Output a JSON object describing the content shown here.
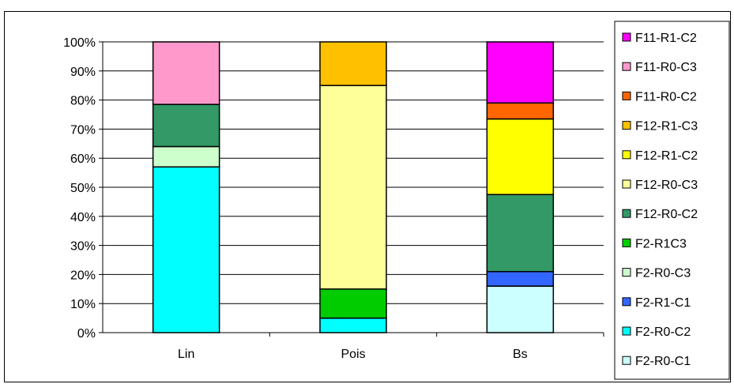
{
  "chart_data": {
    "type": "bar",
    "stacked": true,
    "normalized_percent": true,
    "title": "",
    "xlabel": "",
    "ylabel": "",
    "ylim": [
      0,
      100
    ],
    "y_ticks": [
      "0%",
      "10%",
      "20%",
      "30%",
      "40%",
      "50%",
      "60%",
      "70%",
      "80%",
      "90%",
      "100%"
    ],
    "grid": true,
    "legend_position": "right",
    "categories": [
      "Lin",
      "Pois",
      "Bs"
    ],
    "series": [
      {
        "name": "F2-R0-C1",
        "color": "#CCFFFF",
        "values": [
          0,
          0,
          16
        ]
      },
      {
        "name": "F2-R0-C2",
        "color": "#00FFFF",
        "values": [
          57,
          5,
          0
        ]
      },
      {
        "name": "F2-R1-C1",
        "color": "#3366FF",
        "values": [
          0,
          0,
          5
        ]
      },
      {
        "name": "F2-R0-C3",
        "color": "#CCFFCC",
        "values": [
          7,
          0,
          0
        ]
      },
      {
        "name": "F2-R1C3",
        "color": "#00CC00",
        "values": [
          0,
          10,
          0
        ]
      },
      {
        "name": "F12-R0-C2",
        "color": "#339966",
        "values": [
          14.5,
          0,
          26.5
        ]
      },
      {
        "name": "F12-R0-C3",
        "color": "#FFFF99",
        "values": [
          0,
          70,
          0
        ]
      },
      {
        "name": "F12-R1-C2",
        "color": "#FFFF00",
        "values": [
          0,
          0,
          26
        ]
      },
      {
        "name": "F12-R1-C3",
        "color": "#FFC000",
        "values": [
          0,
          15,
          0
        ]
      },
      {
        "name": "F11-R0-C2",
        "color": "#FF6600",
        "values": [
          0,
          0,
          5.5
        ]
      },
      {
        "name": "F11-R0-C3",
        "color": "#FF99CC",
        "values": [
          21.5,
          0,
          0
        ]
      },
      {
        "name": "F11-R1-C2",
        "color": "#FF00FF",
        "values": [
          0,
          0,
          21
        ]
      }
    ]
  }
}
